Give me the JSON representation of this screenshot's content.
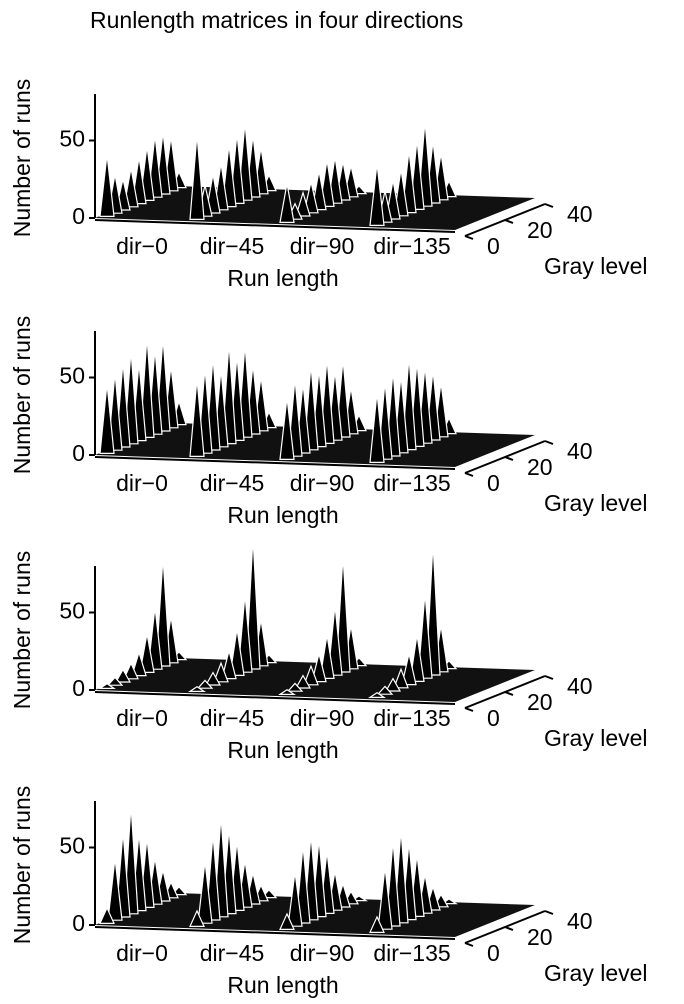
{
  "title": "Runlength matrices in four directions",
  "chart_data": [
    {
      "type": "surface",
      "xlabel": "Run length",
      "ylabel": "Gray level",
      "zlabel": "Number of runs",
      "categories": [
        "dir−0",
        "dir−45",
        "dir−90",
        "dir−135"
      ],
      "y": [
        2,
        6,
        10,
        14,
        18,
        22,
        26,
        30,
        34,
        38
      ],
      "ylim": [
        0,
        40
      ],
      "yticks": [
        0,
        20,
        40
      ],
      "zlim": [
        0,
        80
      ],
      "zticks": [
        0,
        50
      ],
      "color": "#000000",
      "values": [
        [
          40,
          25,
          20,
          25,
          30,
          35,
          40,
          40,
          35,
          10
        ],
        [
          55,
          20,
          25,
          30,
          40,
          45,
          50,
          40,
          30,
          10
        ],
        [
          25,
          10,
          15,
          20,
          25,
          30,
          30,
          25,
          20,
          5
        ],
        [
          40,
          20,
          25,
          30,
          40,
          45,
          55,
          40,
          30,
          10
        ]
      ]
    },
    {
      "type": "surface",
      "xlabel": "Run length",
      "ylabel": "Gray level",
      "zlabel": "Number of runs",
      "categories": [
        "dir−0",
        "dir−45",
        "dir−90",
        "dir−135"
      ],
      "y": [
        2,
        6,
        10,
        14,
        18,
        22,
        26,
        30,
        34,
        38
      ],
      "ylim": [
        0,
        40
      ],
      "yticks": [
        0,
        20,
        40
      ],
      "zlim": [
        0,
        80
      ],
      "zticks": [
        0,
        50
      ],
      "color": "#000000",
      "values": [
        [
          45,
          50,
          55,
          60,
          50,
          65,
          55,
          60,
          40,
          15
        ],
        [
          50,
          55,
          60,
          50,
          65,
          55,
          60,
          45,
          35,
          10
        ],
        [
          40,
          50,
          45,
          55,
          50,
          55,
          45,
          50,
          30,
          10
        ],
        [
          45,
          50,
          55,
          50,
          60,
          55,
          50,
          45,
          35,
          10
        ]
      ]
    },
    {
      "type": "surface",
      "xlabel": "Run length",
      "ylabel": "Gray level",
      "zlabel": "Number of runs",
      "categories": [
        "dir−0",
        "dir−45",
        "dir−90",
        "dir−135"
      ],
      "y": [
        2,
        6,
        10,
        14,
        18,
        22,
        26,
        30,
        34,
        38
      ],
      "ylim": [
        0,
        40
      ],
      "yticks": [
        0,
        20,
        40
      ],
      "zlim": [
        0,
        80
      ],
      "zticks": [
        0,
        50
      ],
      "color": "#000000",
      "values": [
        [
          3,
          5,
          8,
          10,
          15,
          25,
          40,
          70,
          30,
          5
        ],
        [
          3,
          5,
          8,
          12,
          18,
          30,
          50,
          85,
          30,
          5
        ],
        [
          3,
          5,
          8,
          12,
          18,
          28,
          45,
          75,
          28,
          5
        ],
        [
          3,
          5,
          8,
          12,
          20,
          30,
          55,
          85,
          30,
          5
        ]
      ]
    },
    {
      "type": "surface",
      "xlabel": "Run length",
      "ylabel": "Gray level",
      "zlabel": "Number of runs",
      "categories": [
        "dir−0",
        "dir−45",
        "dir−90",
        "dir−135"
      ],
      "y": [
        2,
        6,
        10,
        14,
        18,
        22,
        26,
        30,
        34,
        38
      ],
      "ylim": [
        0,
        40
      ],
      "yticks": [
        0,
        20,
        40
      ],
      "zlim": [
        0,
        80
      ],
      "zticks": [
        0,
        50
      ],
      "color": "#000000",
      "values": [
        [
          10,
          40,
          55,
          70,
          50,
          45,
          30,
          20,
          10,
          5
        ],
        [
          10,
          40,
          55,
          65,
          55,
          45,
          30,
          20,
          10,
          5
        ],
        [
          10,
          35,
          50,
          55,
          50,
          40,
          25,
          15,
          8,
          3
        ],
        [
          10,
          40,
          55,
          60,
          50,
          40,
          25,
          15,
          8,
          3
        ]
      ]
    }
  ]
}
